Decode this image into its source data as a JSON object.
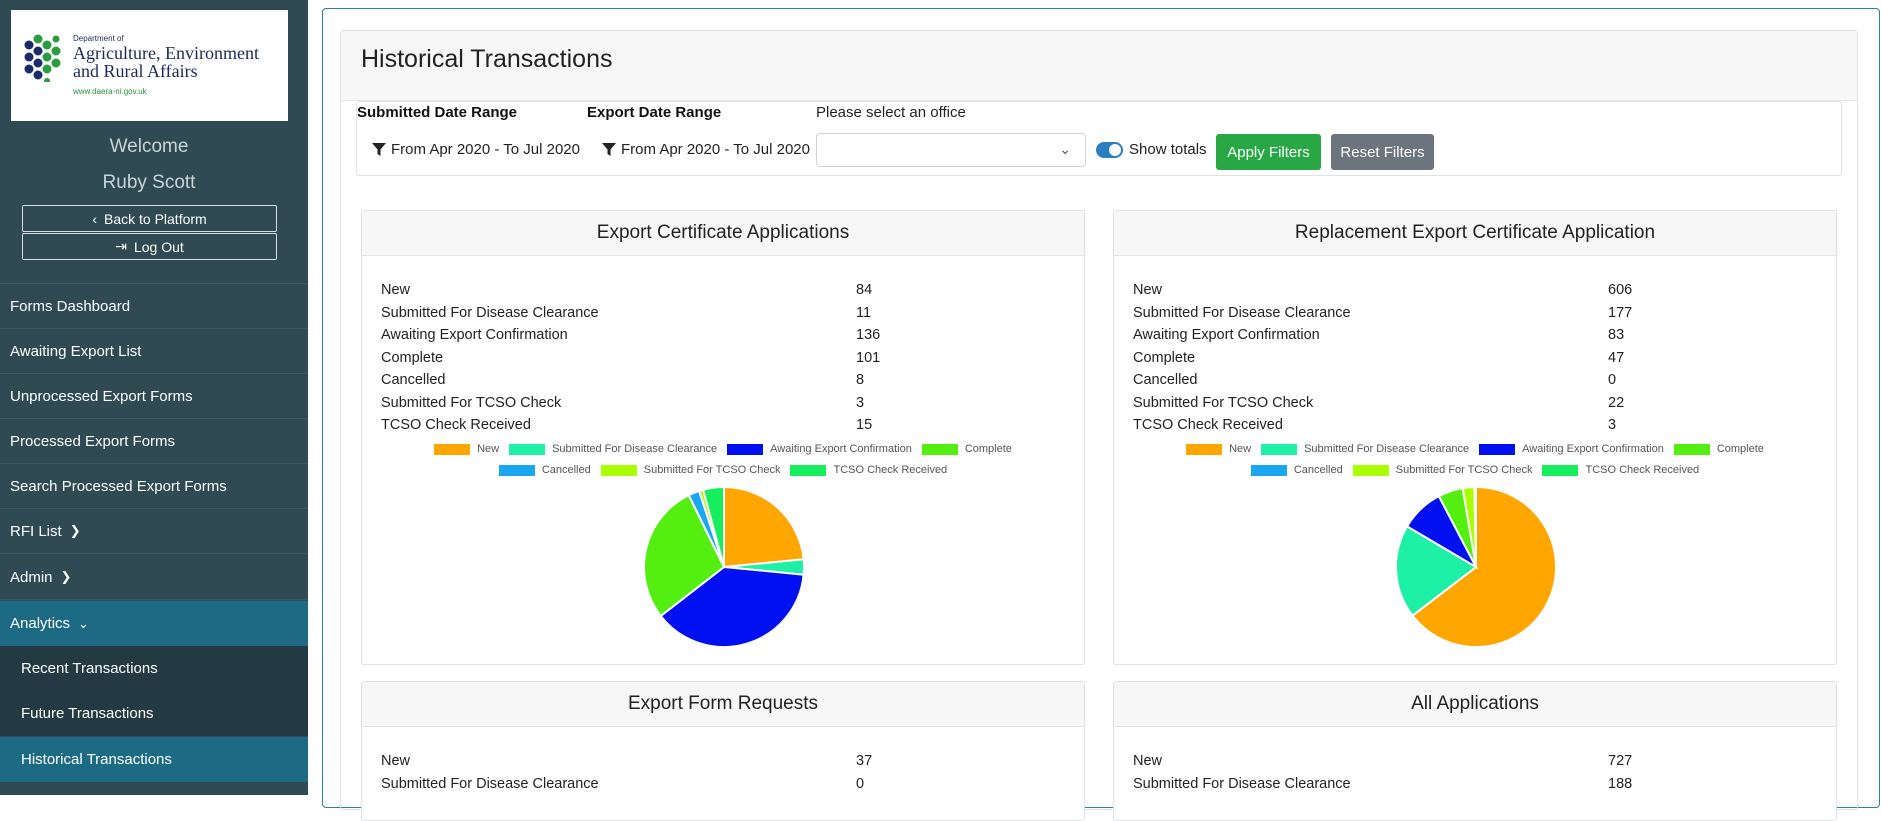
{
  "sidebar": {
    "logo": {
      "department_prefix": "Department of",
      "name_line1": "Agriculture, Environment",
      "name_line2": "and Rural Affairs",
      "url": "www.daera-ni.gov.uk"
    },
    "welcome": "Welcome",
    "user_name": "Ruby Scott",
    "back_label": "Back to Platform",
    "logout_label": "Log Out",
    "nav": [
      {
        "label": "Forms Dashboard"
      },
      {
        "label": "Awaiting Export List"
      },
      {
        "label": "Unprocessed Export Forms"
      },
      {
        "label": "Processed Export Forms"
      },
      {
        "label": "Search Processed Export Forms"
      },
      {
        "label": "RFI List"
      },
      {
        "label": "Admin"
      },
      {
        "label": "Analytics"
      }
    ],
    "analytics_sub": [
      {
        "label": "Recent Transactions"
      },
      {
        "label": "Future Transactions"
      },
      {
        "label": "Historical Transactions",
        "active": true
      }
    ]
  },
  "main": {
    "title": "Historical Transactions",
    "filters": {
      "submitted_label": "Submitted Date Range",
      "submitted_value": "From Apr 2020 - To Jul 2020",
      "export_label": "Export Date Range",
      "export_value": "From Apr 2020 - To Jul 2020",
      "office_label": "Please select an office",
      "office_value": "",
      "show_totals_label": "Show totals",
      "show_totals_on": true,
      "apply_label": "Apply Filters",
      "reset_label": "Reset Filters"
    },
    "colors": {
      "New": "#ffa600",
      "Submitted For Disease Clearance": "#1ff0a8",
      "Awaiting Export Confirmation": "#0010f0",
      "Complete": "#55ee11",
      "Cancelled": "#1aa6f0",
      "Submitted For TCSO Check": "#aaff00",
      "TCSO Check Received": "#16ee5e"
    },
    "legend_line1": [
      "New",
      "Submitted For Disease Clearance",
      "Awaiting Export Confirmation",
      "Complete"
    ],
    "legend_line2": [
      "Cancelled",
      "Submitted For TCSO Check",
      "TCSO Check Received"
    ],
    "panels": [
      {
        "title": "Export Certificate Applications",
        "rows": [
          {
            "label": "New",
            "value": "84"
          },
          {
            "label": "Submitted For Disease Clearance",
            "value": "11"
          },
          {
            "label": "Awaiting Export Confirmation",
            "value": "136"
          },
          {
            "label": "Complete",
            "value": "101"
          },
          {
            "label": "Cancelled",
            "value": "8"
          },
          {
            "label": "Submitted For TCSO Check",
            "value": "3"
          },
          {
            "label": "TCSO Check Received",
            "value": "15"
          }
        ]
      },
      {
        "title": "Replacement Export Certificate Application",
        "rows": [
          {
            "label": "New",
            "value": "606"
          },
          {
            "label": "Submitted For Disease Clearance",
            "value": "177"
          },
          {
            "label": "Awaiting Export Confirmation",
            "value": "83"
          },
          {
            "label": "Complete",
            "value": "47"
          },
          {
            "label": "Cancelled",
            "value": "0"
          },
          {
            "label": "Submitted For TCSO Check",
            "value": "22"
          },
          {
            "label": "TCSO Check Received",
            "value": "3"
          }
        ]
      },
      {
        "title": "Export Form Requests",
        "rows": [
          {
            "label": "New",
            "value": "37"
          },
          {
            "label": "Submitted For Disease Clearance",
            "value": "0"
          }
        ]
      },
      {
        "title": "All Applications",
        "rows": [
          {
            "label": "New",
            "value": "727"
          },
          {
            "label": "Submitted For Disease Clearance",
            "value": "188"
          }
        ]
      }
    ]
  }
}
